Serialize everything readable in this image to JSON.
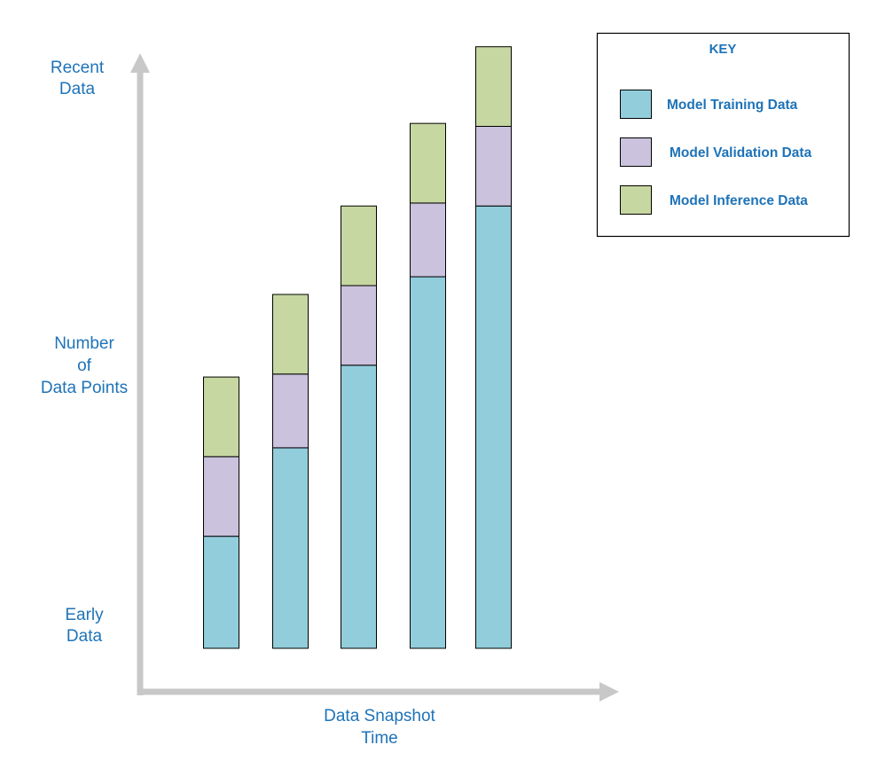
{
  "colors": {
    "axis": "#c8c8c8",
    "label_text": "#1e73b8",
    "bar_outline": "#000000",
    "training": "#92cddb",
    "validation": "#cbc2dd",
    "inference": "#c6d7a1"
  },
  "labels": {
    "y_top_1": "Recent",
    "y_top_2": "Data",
    "y_mid_1": "Number",
    "y_mid_2": "of",
    "y_mid_3": "Data Points",
    "y_bottom_1": "Early",
    "y_bottom_2": "Data",
    "x_1": "Data Snapshot",
    "x_2": "Time"
  },
  "key": {
    "title": "KEY",
    "items": [
      "Model Training Data",
      "Model Validation Data",
      "Model Inference Data"
    ]
  },
  "chart_data": {
    "type": "bar",
    "stacked": true,
    "title": "",
    "xlabel": "Data Snapshot Time",
    "ylabel": "Number of Data Points",
    "legend_position": "top-right",
    "grid": false,
    "ylim": [
      0,
      10.4
    ],
    "categories": [
      "",
      "",
      "",
      "",
      ""
    ],
    "series": [
      {
        "name": "Model Training Data",
        "values": [
          1.9,
          3.4,
          4.8,
          6.3,
          7.5
        ]
      },
      {
        "name": "Model Validation Data",
        "values": [
          1.35,
          1.25,
          1.35,
          1.25,
          1.35
        ]
      },
      {
        "name": "Model Inference Data",
        "values": [
          1.35,
          1.35,
          1.35,
          1.35,
          1.35
        ]
      }
    ]
  }
}
